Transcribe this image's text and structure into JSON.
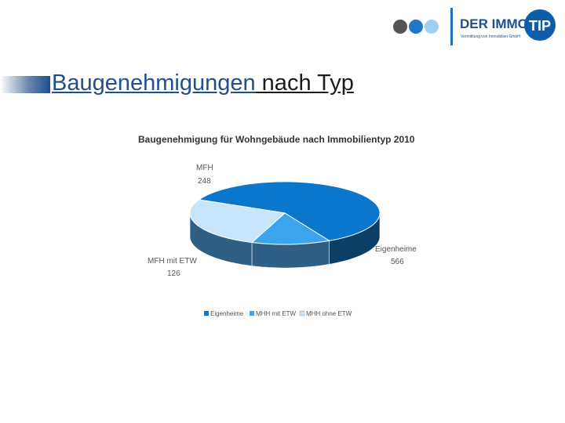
{
  "logo": {
    "text_main": "DER IMMO",
    "text_badge": "TIP",
    "tagline": "Vermittlung von Immobilien GmbH",
    "dot_colors": [
      "#555555",
      "#1f78c8",
      "#9fd0f2"
    ],
    "brand_color": "#0d5da8"
  },
  "slide": {
    "title_link": "Baugenehmigungen",
    "title_rest": " nach Typ"
  },
  "chart_data": {
    "type": "pie",
    "title": "Baugenehmigung für Wohngebäude nach Immobilientyp 2010",
    "three_d": true,
    "legend_placement": "bottom",
    "slices": [
      {
        "name": "Eigenheime",
        "value": 566,
        "label": "Eigenheime",
        "color": "#0a77cc"
      },
      {
        "name": "MHH mit ETW",
        "value": 126,
        "label": "MFH mit ETW",
        "color": "#3aa4ec"
      },
      {
        "name": "MHH ohne ETW",
        "value": 248,
        "label": "MFH",
        "color": "#c8e6fb"
      }
    ]
  }
}
